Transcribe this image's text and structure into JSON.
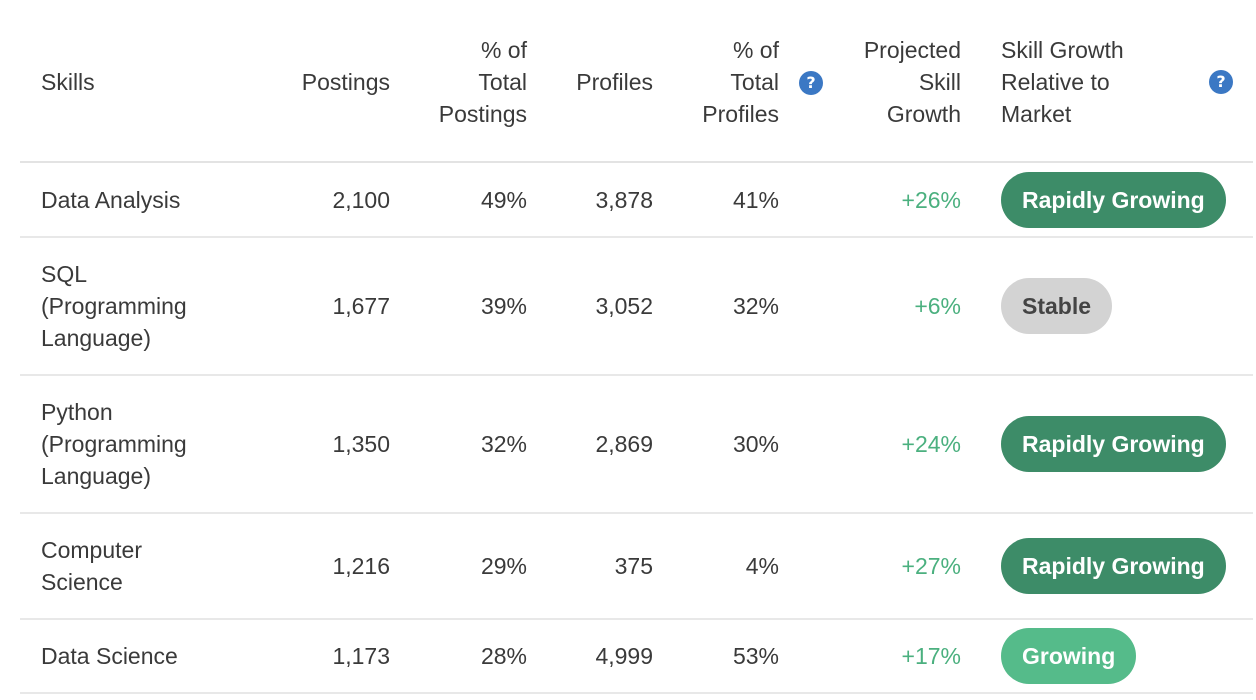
{
  "header": {
    "skills": "Skills",
    "postings": "Postings",
    "pct_total_postings": [
      "% of",
      "Total",
      "Postings"
    ],
    "profiles": "Profiles",
    "pct_total_profiles": [
      "% of",
      "Total",
      "Profiles"
    ],
    "projected_growth": [
      "Projected",
      "Skill",
      "Growth"
    ],
    "relative_growth": [
      "Skill Growth",
      "Relative to",
      "Market"
    ],
    "help_glyph": "?"
  },
  "rows": [
    {
      "skill": [
        "Data Analysis"
      ],
      "postings": "2,100",
      "pct_postings": "49%",
      "profiles": "3,878",
      "pct_profiles": "41%",
      "growth": "+26%",
      "status": "Rapidly Growing"
    },
    {
      "skill": [
        "SQL",
        "(Programming",
        "Language)"
      ],
      "postings": "1,677",
      "pct_postings": "39%",
      "profiles": "3,052",
      "pct_profiles": "32%",
      "growth": "+6%",
      "status": "Stable"
    },
    {
      "skill": [
        "Python",
        "(Programming",
        "Language)"
      ],
      "postings": "1,350",
      "pct_postings": "32%",
      "profiles": "2,869",
      "pct_profiles": "30%",
      "growth": "+24%",
      "status": "Rapidly Growing"
    },
    {
      "skill": [
        "Computer",
        "Science"
      ],
      "postings": "1,216",
      "pct_postings": "29%",
      "profiles": "375",
      "pct_profiles": "4%",
      "growth": "+27%",
      "status": "Rapidly Growing"
    },
    {
      "skill": [
        "Data Science"
      ],
      "postings": "1,173",
      "pct_postings": "28%",
      "profiles": "4,999",
      "pct_profiles": "53%",
      "growth": "+17%",
      "status": "Growing"
    }
  ],
  "colors": {
    "rapidly_growing": "#3d8c68",
    "stable": "#d3d3d3",
    "growing": "#55bb8a",
    "growth_text": "#4bb07f",
    "help_icon": "#3b78c4"
  }
}
